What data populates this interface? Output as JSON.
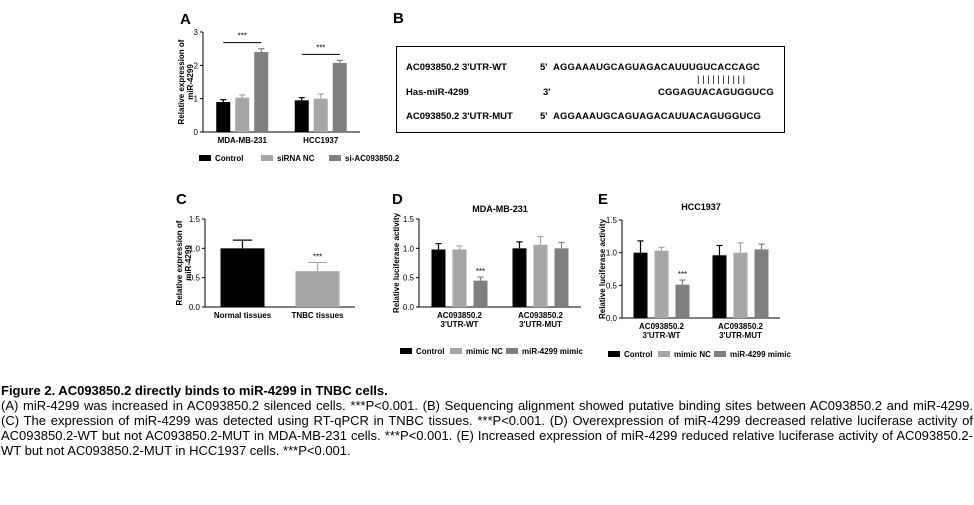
{
  "colors": {
    "control": "#000000",
    "nc": "#a6a6a6",
    "treat": "#7f7f7f"
  },
  "panels": {
    "A": {
      "letter": "A",
      "chart_data": {
        "type": "bar",
        "ylabel": "Relative expression of miR-4299",
        "ylim": [
          0,
          3
        ],
        "yticks": [
          "0",
          "1",
          "2",
          "3"
        ],
        "categories": [
          "MDA-MB-231",
          "HCC1937"
        ],
        "series": [
          {
            "name": "Control",
            "values": [
              0.9,
              0.95
            ],
            "errors": [
              0.07,
              0.08
            ],
            "color": "#000000"
          },
          {
            "name": "siRNA NC",
            "values": [
              1.03,
              1.0
            ],
            "errors": [
              0.08,
              0.14
            ],
            "color": "#a6a6a6"
          },
          {
            "name": "si-AC093850.2",
            "values": [
              2.4,
              2.07
            ],
            "errors": [
              0.1,
              0.08
            ],
            "color": "#7f7f7f"
          }
        ],
        "significance": [
          {
            "category": 0,
            "label": "***"
          },
          {
            "category": 1,
            "label": "***"
          }
        ]
      }
    },
    "B": {
      "letter": "B",
      "rows": [
        {
          "label": "AC093850.2 3'UTR-WT",
          "end": "5'",
          "seq": "AGGAAAUGCAGUAGACAUUUGUCACCAGC"
        },
        {
          "bars": "||||||||||"
        },
        {
          "label": "Has-miR-4299",
          "end": "3'",
          "seq": "CGGAGUACAGUGGUCG"
        },
        {
          "label": "AC093850.2 3'UTR-MUT",
          "end": "5'",
          "seq": "AGGAAAUGCAGUAGACAUUACAGUGGUCG"
        }
      ]
    },
    "C": {
      "letter": "C",
      "chart_data": {
        "type": "bar",
        "ylabel": "Relative expression of miR-4299",
        "ylim": [
          0,
          1.5
        ],
        "yticks": [
          "0.0",
          "0.5",
          "1.0",
          "1.5"
        ],
        "categories": [
          "Normal tissues",
          "TNBC tissues"
        ],
        "values": [
          1.0,
          0.61
        ],
        "errors": [
          0.14,
          0.15
        ],
        "significance": [
          {
            "category": 1,
            "label": "***"
          }
        ]
      }
    },
    "D": {
      "letter": "D",
      "chart_data": {
        "type": "bar",
        "title": "MDA-MB-231",
        "ylabel": "Relative luciferase activity",
        "ylim": [
          0,
          1.5
        ],
        "yticks": [
          "0.0",
          "0.5",
          "1.0",
          "1.5"
        ],
        "categories": [
          [
            "AC093850.2",
            "3'UTR-WT"
          ],
          [
            "AC093850.2",
            "3'UTR-MUT"
          ]
        ],
        "series": [
          {
            "name": "Control",
            "values": [
              0.98,
              1.0
            ],
            "errors": [
              0.1,
              0.11
            ],
            "color": "#000000"
          },
          {
            "name": "mimic NC",
            "values": [
              0.98,
              1.06
            ],
            "errors": [
              0.06,
              0.14
            ],
            "color": "#a6a6a6"
          },
          {
            "name": "miR-4299 mimic",
            "values": [
              0.45,
              1.0
            ],
            "errors": [
              0.06,
              0.1
            ],
            "color": "#7f7f7f"
          }
        ],
        "significance": [
          {
            "category": 0,
            "label": "***"
          }
        ]
      }
    },
    "E": {
      "letter": "E",
      "chart_data": {
        "type": "bar",
        "title": "HCC1937",
        "ylabel": "Relative luciferase activity",
        "ylim": [
          0,
          1.5
        ],
        "yticks": [
          "0.0",
          "0.5",
          "1.0",
          "1.5"
        ],
        "categories": [
          [
            "AC093850.2",
            "3'UTR-WT"
          ],
          [
            "AC093850.2",
            "3'UTR-MUT"
          ]
        ],
        "series": [
          {
            "name": "Control",
            "values": [
              1.0,
              0.96
            ],
            "errors": [
              0.18,
              0.15
            ],
            "color": "#000000"
          },
          {
            "name": "mimic NC",
            "values": [
              1.03,
              1.0
            ],
            "errors": [
              0.05,
              0.15
            ],
            "color": "#a6a6a6"
          },
          {
            "name": "miR-4299 mimic",
            "values": [
              0.51,
              1.05
            ],
            "errors": [
              0.07,
              0.08
            ],
            "color": "#7f7f7f"
          }
        ],
        "significance": [
          {
            "category": 0,
            "label": "***"
          }
        ]
      }
    }
  },
  "caption": {
    "title": "Figure 2. AC093850.2 directly binds to miR-4299 in TNBC cells.",
    "body": "(A) miR-4299 was increased in AC093850.2 silenced cells. ***P<0.001. (B) Sequencing alignment showed putative binding sites between AC093850.2 and miR-4299. (C) The expression of miR-4299 was detected using RT-qPCR in TNBC tissues. ***P<0.001. (D) Overexpression of miR-4299 decreased relative luciferase activity of AC093850.2-WT but not AC093850.2-MUT in MDA-MB-231 cells. ***P<0.001. (E) Increased expression of miR-4299 reduced relative luciferase activity of AC093850.2-WT but not AC093850.2-MUT in HCC1937 cells. ***P<0.001."
  }
}
